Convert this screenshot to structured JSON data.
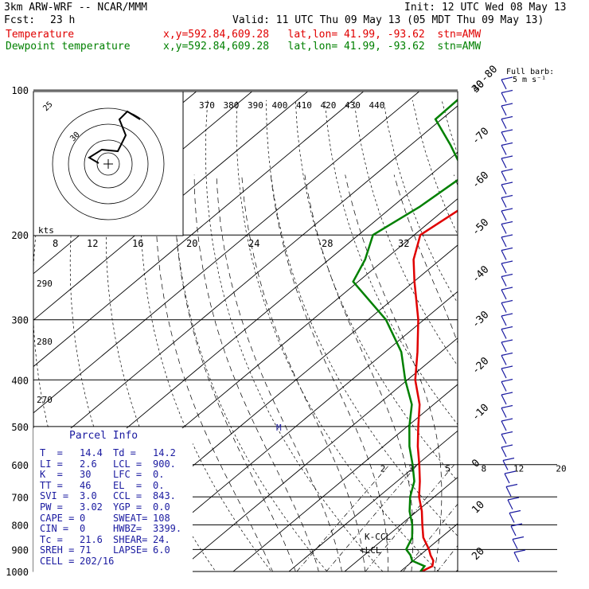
{
  "header": {
    "model": "3km ARW-WRF -- NCAR/MMM",
    "init": "Init: 12 UTC Wed 08 May 13",
    "fcst_label": "Fcst:",
    "fcst_value": "23 h",
    "valid": "Valid: 11 UTC Thu 09 May 13 (05 MDT Thu 09 May 13)",
    "temp_label": "Temperature",
    "dew_label": "Dewpoint temperature",
    "temp_info": "x,y=592.84,609.28   lat,lon= 41.99, -93.62  stn=AMW",
    "dew_info": "x,y=592.84,609.28   lat,lon= 41.99, -93.62  stn=AMW"
  },
  "barb_legend": {
    "line1": "Full barb:",
    "line2": "5 m s⁻¹"
  },
  "hodograph": {
    "unit": "kts",
    "ring_labels": [
      "25",
      "30",
      "35"
    ],
    "speed_labels": [
      "8",
      "12",
      "16",
      "20",
      "24",
      "28",
      "32"
    ]
  },
  "theta_e_labels": [
    "370",
    "380",
    "390",
    "400",
    "410",
    "420",
    "430",
    "440"
  ],
  "theta_labels": [
    "290",
    "280",
    "270"
  ],
  "mixing_labels": [
    "2",
    "3",
    "5",
    "8",
    "12",
    "20"
  ],
  "markers": {
    "m": "M",
    "kccl": "K-CCL",
    "lcl": "LCL"
  },
  "parcel_info": {
    "title": "Parcel Info",
    "rows": [
      [
        "T  =",
        "14.4",
        "Td =",
        "14.2"
      ],
      [
        "LI =",
        "2.6",
        "LCL =",
        "900."
      ],
      [
        "K  =",
        "30",
        "LFC =",
        "0."
      ],
      [
        "TT =",
        "46",
        "EL  =",
        "0."
      ],
      [
        "SVI =",
        "3.0",
        "CCL =",
        "843."
      ],
      [
        "PW =",
        "3.02",
        "YGP =",
        "0.0"
      ],
      [
        "CAPE =",
        "0",
        "SWEAT=",
        "108"
      ],
      [
        "CIN =",
        "0",
        "HWBZ=",
        "3399."
      ],
      [
        "Tc =",
        "21.6",
        "SHEAR=",
        "24."
      ],
      [
        "SREH =",
        "71",
        "LAPSE=",
        "6.0"
      ],
      [
        "CELL =",
        "202/16",
        "",
        ""
      ]
    ]
  },
  "chart_data": {
    "type": "line",
    "title": "",
    "xlabel": "",
    "ylabel": "",
    "y_scale": "log",
    "ylim": [
      1000,
      100
    ],
    "pressure_ticks": [
      100,
      200,
      300,
      400,
      500,
      600,
      700,
      800,
      900,
      1000
    ],
    "temperature_ticks": [
      -80,
      -70,
      -60,
      -50,
      -40,
      -30,
      -20,
      -10,
      0,
      10,
      20,
      30,
      40
    ],
    "series": [
      {
        "name": "Temperature",
        "color": "#e00000",
        "points": [
          [
            1000,
            13.8
          ],
          [
            975,
            14.6
          ],
          [
            950,
            13.6
          ],
          [
            925,
            11.9
          ],
          [
            900,
            10.4
          ],
          [
            850,
            6.8
          ],
          [
            800,
            3.9
          ],
          [
            750,
            0.9
          ],
          [
            700,
            -2.7
          ],
          [
            650,
            -5.9
          ],
          [
            600,
            -9.6
          ],
          [
            550,
            -13.8
          ],
          [
            500,
            -18.0
          ],
          [
            450,
            -22.5
          ],
          [
            400,
            -28.6
          ],
          [
            350,
            -34.2
          ],
          [
            300,
            -41.0
          ],
          [
            250,
            -49.9
          ],
          [
            225,
            -54.8
          ],
          [
            200,
            -58.9
          ],
          [
            175,
            -57.2
          ],
          [
            150,
            -60.2
          ],
          [
            130,
            -62.3
          ],
          [
            115,
            -64.8
          ],
          [
            100,
            -66.3
          ]
        ]
      },
      {
        "name": "Dewpoint temperature",
        "color": "#008000",
        "points": [
          [
            1000,
            13.6
          ],
          [
            975,
            13.2
          ],
          [
            950,
            9.8
          ],
          [
            925,
            8.3
          ],
          [
            900,
            6.3
          ],
          [
            850,
            4.8
          ],
          [
            800,
            2.1
          ],
          [
            750,
            -1.3
          ],
          [
            700,
            -4.3
          ],
          [
            650,
            -6.9
          ],
          [
            600,
            -10.8
          ],
          [
            550,
            -15.3
          ],
          [
            500,
            -19.6
          ],
          [
            450,
            -23.9
          ],
          [
            400,
            -30.4
          ],
          [
            350,
            -37.1
          ],
          [
            300,
            -46.8
          ],
          [
            250,
            -60.9
          ],
          [
            225,
            -63.5
          ],
          [
            200,
            -67.4
          ],
          [
            175,
            -65.1
          ],
          [
            150,
            -63.8
          ],
          [
            130,
            -72.9
          ],
          [
            115,
            -81.1
          ],
          [
            100,
            -81.4
          ]
        ]
      }
    ],
    "wind_barb_color": "#1a1aa0"
  }
}
